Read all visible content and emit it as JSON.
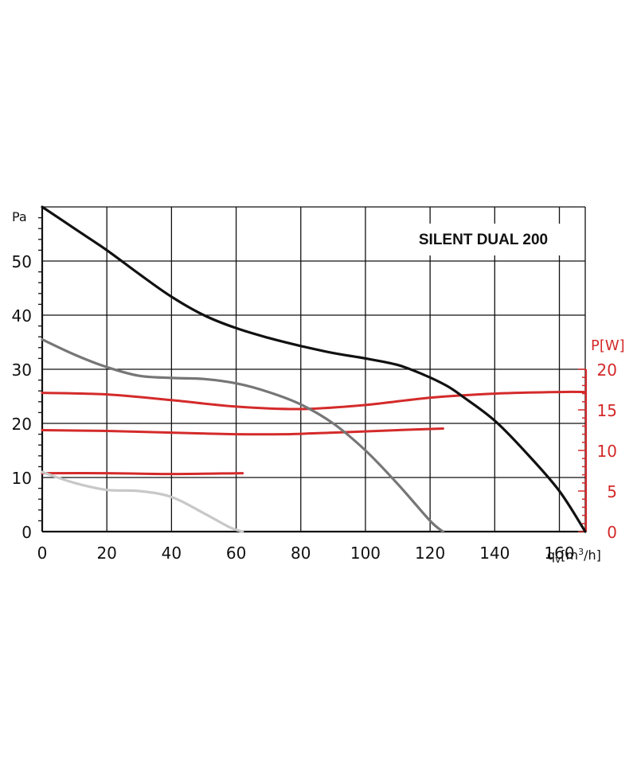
{
  "chart_data": {
    "type": "line",
    "title": "SILENT DUAL 200",
    "x_axis": {
      "range": [
        0,
        168
      ],
      "ticks": [
        0,
        20,
        40,
        60,
        80,
        100,
        120,
        140,
        160
      ],
      "unit_base": "q",
      "unit_sub": "v",
      "unit_open": "[m",
      "unit_sup": "3",
      "unit_close": "/h]"
    },
    "y_axis_left": {
      "range": [
        0,
        60
      ],
      "ticks": [
        0,
        10,
        20,
        30,
        40,
        50
      ],
      "unit": "Pa"
    },
    "y_axis_right": {
      "range": [
        0,
        20
      ],
      "ticks": [
        0,
        5,
        10,
        15,
        20
      ],
      "unit": "P[W]"
    },
    "grid": true,
    "series": [
      {
        "axis": "left",
        "color": "#111111",
        "points": [
          [
            0,
            60
          ],
          [
            10,
            56
          ],
          [
            20,
            52
          ],
          [
            30,
            47.6
          ],
          [
            40,
            43.4
          ],
          [
            50,
            40
          ],
          [
            60,
            37.6
          ],
          [
            70,
            35.8
          ],
          [
            80,
            34.3
          ],
          [
            90,
            33
          ],
          [
            100,
            32
          ],
          [
            110,
            30.8
          ],
          [
            118,
            29
          ],
          [
            125,
            27
          ],
          [
            130,
            25
          ],
          [
            140,
            20.5
          ],
          [
            150,
            14.4
          ],
          [
            160,
            7.5
          ],
          [
            168,
            0
          ]
        ]
      },
      {
        "axis": "left",
        "color": "#767676",
        "points": [
          [
            0,
            35.5
          ],
          [
            10,
            32.7
          ],
          [
            20,
            30.4
          ],
          [
            30,
            28.8
          ],
          [
            40,
            28.4
          ],
          [
            50,
            28.2
          ],
          [
            60,
            27.4
          ],
          [
            70,
            25.8
          ],
          [
            80,
            23.5
          ],
          [
            90,
            20
          ],
          [
            100,
            15
          ],
          [
            110,
            8.8
          ],
          [
            120,
            2
          ],
          [
            124,
            0
          ]
        ]
      },
      {
        "axis": "left",
        "color": "#c8c8c8",
        "points": [
          [
            0,
            11
          ],
          [
            10,
            9
          ],
          [
            20,
            7.7
          ],
          [
            30,
            7.5
          ],
          [
            40,
            6.4
          ],
          [
            50,
            3.4
          ],
          [
            58,
            0.8
          ],
          [
            62,
            0
          ]
        ]
      },
      {
        "axis": "right",
        "color": "#d42a2a",
        "points": [
          [
            0,
            17.1
          ],
          [
            20,
            16.9
          ],
          [
            40,
            16.2
          ],
          [
            60,
            15.4
          ],
          [
            80,
            15.1
          ],
          [
            100,
            15.6
          ],
          [
            120,
            16.5
          ],
          [
            140,
            17
          ],
          [
            160,
            17.2
          ],
          [
            168,
            17.2
          ]
        ]
      },
      {
        "axis": "right",
        "color": "#d42a2a",
        "points": [
          [
            0,
            12.5
          ],
          [
            20,
            12.4
          ],
          [
            40,
            12.2
          ],
          [
            60,
            12
          ],
          [
            75,
            12
          ],
          [
            90,
            12.2
          ],
          [
            110,
            12.5
          ],
          [
            124,
            12.7
          ]
        ]
      },
      {
        "axis": "right",
        "color": "#d42a2a",
        "points": [
          [
            0,
            7.2
          ],
          [
            20,
            7.2
          ],
          [
            40,
            7.1
          ],
          [
            62,
            7.2
          ]
        ]
      }
    ]
  }
}
